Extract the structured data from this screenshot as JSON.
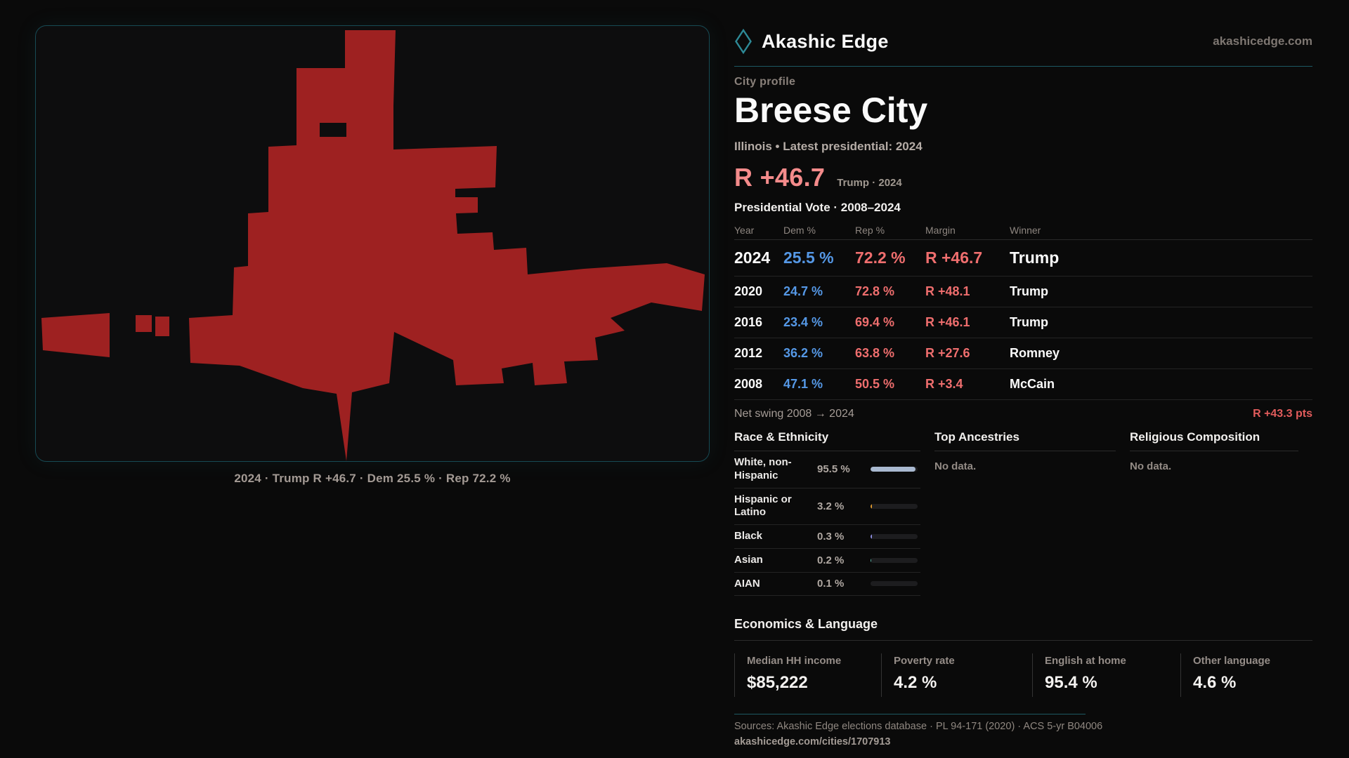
{
  "brand": {
    "logo_text": "Akashic Edge",
    "domain": "akashicedge.com"
  },
  "profile": {
    "kicker": "City profile",
    "title": "Breese City",
    "subtitle": "Illinois • Latest presidential: 2024",
    "headline": {
      "margin": "R +46.7",
      "context": "Trump · 2024"
    }
  },
  "vote_table": {
    "title": "Presidential Vote · 2008–2024",
    "columns": [
      "Year",
      "Dem %",
      "Rep %",
      "Margin",
      "Winner"
    ],
    "rows": [
      {
        "year": "2024",
        "dem": "25.5 %",
        "rep": "72.2 %",
        "margin": "R +46.7",
        "winner": "Trump"
      },
      {
        "year": "2020",
        "dem": "24.7 %",
        "rep": "72.8 %",
        "margin": "R +48.1",
        "winner": "Trump"
      },
      {
        "year": "2016",
        "dem": "23.4 %",
        "rep": "69.4 %",
        "margin": "R +46.1",
        "winner": "Trump"
      },
      {
        "year": "2012",
        "dem": "36.2 %",
        "rep": "63.8 %",
        "margin": "R +27.6",
        "winner": "Romney"
      },
      {
        "year": "2008",
        "dem": "47.1 %",
        "rep": "50.5 %",
        "margin": "R +3.4",
        "winner": "McCain"
      }
    ]
  },
  "net_swing": {
    "label": "Net swing 2008 → 2024",
    "value": "R +43.3 pts"
  },
  "race": {
    "title": "Race & Ethnicity",
    "rows": [
      {
        "label": "White, non-Hispanic",
        "value": "95.5 %",
        "pct": 95.5,
        "color": "#a9b9d0"
      },
      {
        "label": "Hispanic or Latino",
        "value": "3.2 %",
        "pct": 3.2,
        "color": "#e09a2e"
      },
      {
        "label": "Black",
        "value": "0.3 %",
        "pct": 0.3,
        "color": "#8d8de0"
      },
      {
        "label": "Asian",
        "value": "0.2 %",
        "pct": 0.2,
        "color": "#58b9a8"
      },
      {
        "label": "AIAN",
        "value": "0.1 %",
        "pct": 0.1,
        "color": "#c76fd6"
      }
    ]
  },
  "ancestries": {
    "title": "Top Ancestries",
    "empty": "No data."
  },
  "religion": {
    "title": "Religious Composition",
    "empty": "No data."
  },
  "economics": {
    "title": "Economics & Language",
    "stats": [
      {
        "label": "Median HH income",
        "value": "$85,222"
      },
      {
        "label": "Poverty rate",
        "value": "4.2 %"
      },
      {
        "label": "English at home",
        "value": "95.4 %"
      },
      {
        "label": "Other language",
        "value": "4.6 %"
      }
    ]
  },
  "map": {
    "caption": "2024 · Trump R +46.7 · Dem 25.5 % · Rep 72.2 %",
    "fill": "#9e2121"
  },
  "colors": {
    "accent_teal": "#1d5862",
    "dem_blue": "#5598e6",
    "rep_red": "#ef6e6e",
    "headline_red": "#f48b8b",
    "swing_red": "#e25c5c",
    "city_fill": "#9e2121"
  },
  "footer": {
    "sources": "Sources: Akashic Edge elections database · PL 94-171 (2020) · ACS 5-yr B04006",
    "permalink": "akashicedge.com/cities/1707913"
  }
}
